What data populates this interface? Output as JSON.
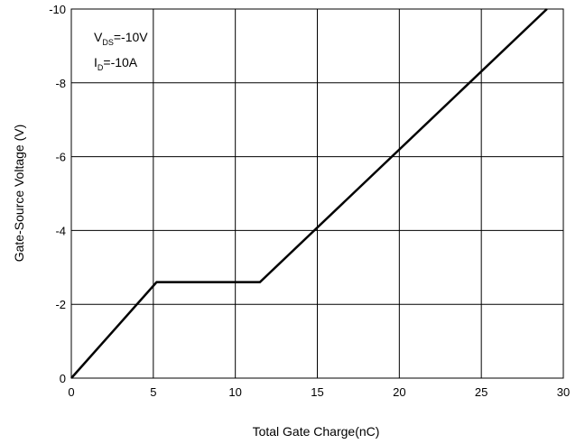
{
  "chart_data": {
    "type": "line",
    "title": "",
    "xlabel": "Total Gate Charge(nC)",
    "ylabel": "Gate-Source Voltage (V)",
    "xlim": [
      0,
      30
    ],
    "ylim": [
      0,
      -10
    ],
    "xticks": [
      0,
      5,
      10,
      15,
      20,
      25,
      30
    ],
    "yticks": [
      0,
      -2,
      -4,
      -6,
      -8,
      -10
    ],
    "x_tick_labels": [
      "0",
      "5",
      "10",
      "15",
      "20",
      "25",
      "30"
    ],
    "y_tick_labels": [
      "0",
      "-2",
      "-4",
      "-6",
      "-8",
      "-10"
    ],
    "grid": true,
    "annotation": {
      "line1": {
        "main": "V",
        "sub": "DS",
        "rest": "=-10V"
      },
      "line2": {
        "main": "I",
        "sub": "D",
        "rest": "=-10A"
      }
    },
    "series": [
      {
        "x": [
          0,
          5.2,
          11.5,
          29.0
        ],
        "y": [
          0,
          -2.6,
          -2.6,
          -10.0
        ],
        "color": "#000000"
      }
    ]
  }
}
